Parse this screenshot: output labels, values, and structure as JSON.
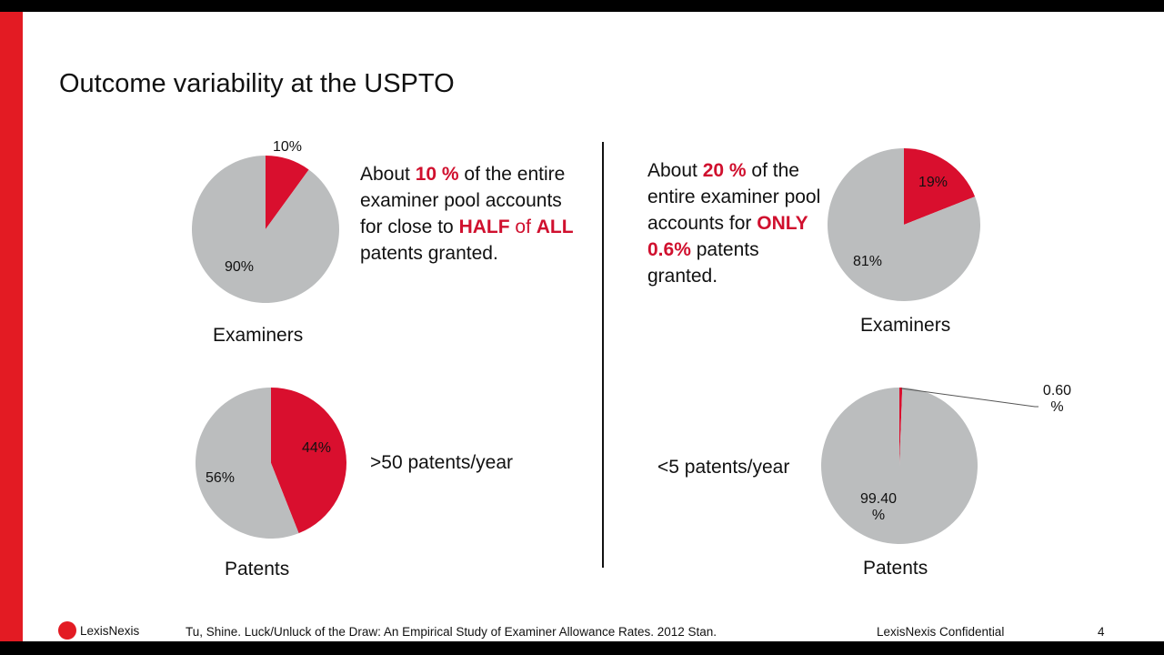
{
  "title": "Outcome variability at the USPTO",
  "colors": {
    "accent": "#e31b23",
    "slice_red": "#d90f2e",
    "slice_gray": "#bbbdbe"
  },
  "left_text": {
    "p1": "About ",
    "p2": "10 %",
    "p3": " of the entire examiner pool accounts for close to ",
    "p4": "HALF",
    "p5": " of ",
    "p6": "ALL",
    "p7": " patents granted."
  },
  "right_text": {
    "p1": "About ",
    "p2": "20 %",
    "p3": " of the entire examiner pool accounts for ",
    "p4": "ONLY 0.6%",
    "p5": " patents granted."
  },
  "left_bottom_label": ">50 patents/year",
  "right_bottom_label": "<5 patents/year",
  "chart_data": [
    {
      "type": "pie",
      "title": "Examiners",
      "slices": [
        {
          "label": "10%",
          "value": 10,
          "color": "#d90f2e"
        },
        {
          "label": "90%",
          "value": 90,
          "color": "#bbbdbe"
        }
      ]
    },
    {
      "type": "pie",
      "title": "Patents",
      "slices": [
        {
          "label": "44%",
          "value": 44,
          "color": "#d90f2e"
        },
        {
          "label": "56%",
          "value": 56,
          "color": "#bbbdbe"
        }
      ]
    },
    {
      "type": "pie",
      "title": "Examiners",
      "slices": [
        {
          "label": "19%",
          "value": 19,
          "color": "#d90f2e"
        },
        {
          "label": "81%",
          "value": 81,
          "color": "#bbbdbe"
        }
      ]
    },
    {
      "type": "pie",
      "title": "Patents",
      "slices": [
        {
          "label": "0.60 %",
          "value": 0.6,
          "color": "#d90f2e"
        },
        {
          "label": "99.40 %",
          "value": 99.4,
          "color": "#bbbdbe"
        }
      ]
    }
  ],
  "footer": {
    "logo": "LexisNexis",
    "citation": "Tu, Shine.  Luck/Unluck of the Draw: An Empirical Study of Examiner Allowance Rates.  2012 Stan.",
    "confidential": "LexisNexis Confidential",
    "page": "4"
  }
}
